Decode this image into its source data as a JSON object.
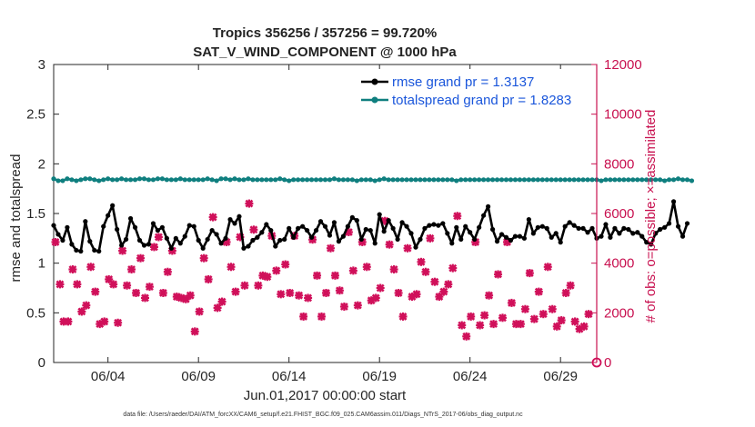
{
  "chart_data": {
    "type": "line",
    "title": "Tropics 356256 / 357256 = 99.720%",
    "subtitle": "SAT_V_WIND_COMPONENT @ 1000 hPa",
    "xlabel": "Jun.01,2017 00:00:00 start",
    "ylabel": "rmse and totalspread",
    "y2label": "# of obs: o=possible; ×=assimilated",
    "footnote": "data file: /Users/raeder/DAI/ATM_forcXX/CAM6_setup/f.e21.FHIST_BGC.f09_025.CAM6assim.011/Diags_NTrS_2017-06/obs_diag_output.nc",
    "xlim": [
      1,
      31
    ],
    "ylim": [
      0,
      3
    ],
    "y2lim": [
      0,
      12000
    ],
    "x_ticks": [
      4,
      9,
      14,
      19,
      24,
      29
    ],
    "x_tick_labels": [
      "06/04",
      "06/09",
      "06/14",
      "06/19",
      "06/24",
      "06/29"
    ],
    "y_ticks": [
      0,
      0.5,
      1,
      1.5,
      2,
      2.5,
      3
    ],
    "y_tick_labels": [
      "0",
      "0.5",
      "1",
      "1.5",
      "2",
      "2.5",
      "3"
    ],
    "y2_ticks": [
      0,
      2000,
      4000,
      6000,
      8000,
      10000,
      12000
    ],
    "y2_tick_labels": [
      "0",
      "2000",
      "4000",
      "6000",
      "8000",
      "10000",
      "12000"
    ],
    "legend_location": "top-right",
    "series": [
      {
        "name": "rmse grand pr = 1.3137",
        "color": "#000000",
        "axis": "left",
        "x_start": 1.0,
        "x_step": 0.25,
        "values": [
          1.38,
          1.29,
          1.23,
          1.36,
          1.19,
          1.13,
          1.12,
          1.42,
          1.22,
          1.13,
          1.12,
          1.37,
          1.48,
          1.58,
          1.34,
          1.18,
          1.24,
          1.45,
          1.36,
          1.23,
          1.18,
          1.19,
          1.4,
          1.33,
          1.36,
          1.25,
          1.15,
          1.25,
          1.2,
          1.27,
          1.38,
          1.37,
          1.23,
          1.15,
          1.24,
          1.33,
          1.29,
          1.2,
          1.25,
          1.44,
          1.4,
          1.47,
          1.15,
          1.17,
          1.23,
          1.26,
          1.31,
          1.39,
          1.33,
          1.17,
          1.23,
          1.24,
          1.35,
          1.26,
          1.35,
          1.37,
          1.33,
          1.26,
          1.33,
          1.42,
          1.37,
          1.28,
          1.41,
          1.22,
          1.27,
          1.37,
          1.46,
          1.43,
          1.24,
          1.34,
          1.33,
          1.2,
          1.49,
          1.32,
          1.43,
          1.35,
          1.24,
          1.41,
          1.37,
          1.3,
          1.16,
          1.24,
          1.35,
          1.38,
          1.39,
          1.38,
          1.4,
          1.3,
          1.2,
          1.36,
          1.24,
          1.37,
          1.31,
          1.24,
          1.36,
          1.48,
          1.57,
          1.34,
          1.22,
          1.29,
          1.26,
          1.23,
          1.27,
          1.27,
          1.25,
          1.44,
          1.3,
          1.36,
          1.37,
          1.35,
          1.26,
          1.3,
          1.21,
          1.37,
          1.41,
          1.38,
          1.35,
          1.35,
          1.31,
          1.35,
          1.25,
          1.27,
          1.39,
          1.26,
          1.35,
          1.3,
          1.35,
          1.34,
          1.3,
          1.31,
          1.27,
          1.21,
          1.19,
          1.3,
          1.34,
          1.36,
          1.4,
          1.62,
          1.37,
          1.27,
          1.4
        ]
      },
      {
        "name": "totalspread grand pr = 1.8283",
        "color": "#0f7f7f",
        "axis": "left",
        "x_start": 1.0,
        "x_step": 0.25,
        "values": [
          1.85,
          1.83,
          1.83,
          1.85,
          1.84,
          1.83,
          1.84,
          1.85,
          1.85,
          1.84,
          1.83,
          1.84,
          1.85,
          1.84,
          1.84,
          1.85,
          1.84,
          1.84,
          1.84,
          1.85,
          1.85,
          1.84,
          1.84,
          1.85,
          1.85,
          1.84,
          1.84,
          1.84,
          1.85,
          1.84,
          1.84,
          1.84,
          1.84,
          1.84,
          1.85,
          1.84,
          1.83,
          1.85,
          1.85,
          1.84,
          1.85,
          1.84,
          1.84,
          1.85,
          1.84,
          1.84,
          1.84,
          1.84,
          1.84,
          1.84,
          1.85,
          1.84,
          1.83,
          1.84,
          1.84,
          1.84,
          1.84,
          1.84,
          1.84,
          1.84,
          1.84,
          1.84,
          1.85,
          1.84,
          1.84,
          1.84,
          1.84,
          1.83,
          1.84,
          1.84,
          1.84,
          1.83,
          1.84,
          1.85,
          1.84,
          1.84,
          1.84,
          1.84,
          1.84,
          1.84,
          1.84,
          1.84,
          1.84,
          1.84,
          1.84,
          1.84,
          1.84,
          1.84,
          1.84,
          1.83,
          1.84,
          1.84,
          1.84,
          1.84,
          1.84,
          1.84,
          1.84,
          1.84,
          1.84,
          1.84,
          1.84,
          1.84,
          1.84,
          1.84,
          1.84,
          1.84,
          1.84,
          1.84,
          1.84,
          1.84,
          1.84,
          1.84,
          1.84,
          1.84,
          1.84,
          1.84,
          1.84,
          1.84,
          1.84,
          1.84,
          1.84,
          1.83,
          1.84,
          1.84,
          1.84,
          1.84,
          1.84,
          1.84,
          1.84,
          1.84,
          1.84,
          1.84,
          1.84,
          1.84,
          1.84,
          1.83,
          1.84,
          1.84,
          1.85,
          1.84,
          1.84,
          1.83
        ]
      }
    ],
    "obs_series": {
      "name": "# of obs assimilated",
      "color": "#d0105a",
      "axis": "right",
      "marker": "x",
      "points": [
        {
          "x": 1.1,
          "y": 4850
        },
        {
          "x": 1.35,
          "y": 3150
        },
        {
          "x": 1.55,
          "y": 1650
        },
        {
          "x": 1.8,
          "y": 1650
        },
        {
          "x": 2.05,
          "y": 3750
        },
        {
          "x": 2.3,
          "y": 3150
        },
        {
          "x": 2.55,
          "y": 2050
        },
        {
          "x": 2.8,
          "y": 2300
        },
        {
          "x": 3.05,
          "y": 3850
        },
        {
          "x": 3.3,
          "y": 2850
        },
        {
          "x": 3.55,
          "y": 1550
        },
        {
          "x": 3.8,
          "y": 1650
        },
        {
          "x": 4.05,
          "y": 3350
        },
        {
          "x": 4.3,
          "y": 3150
        },
        {
          "x": 4.55,
          "y": 1600
        },
        {
          "x": 4.8,
          "y": 4500
        },
        {
          "x": 5.05,
          "y": 3100
        },
        {
          "x": 5.3,
          "y": 3750
        },
        {
          "x": 5.55,
          "y": 2800
        },
        {
          "x": 5.8,
          "y": 4200
        },
        {
          "x": 6.05,
          "y": 2600
        },
        {
          "x": 6.3,
          "y": 3050
        },
        {
          "x": 6.55,
          "y": 4650
        },
        {
          "x": 6.8,
          "y": 5050
        },
        {
          "x": 7.05,
          "y": 2800
        },
        {
          "x": 7.3,
          "y": 3650
        },
        {
          "x": 7.55,
          "y": 4500
        },
        {
          "x": 7.8,
          "y": 2650
        },
        {
          "x": 8.05,
          "y": 2600
        },
        {
          "x": 8.3,
          "y": 2550
        },
        {
          "x": 8.55,
          "y": 2700
        },
        {
          "x": 8.8,
          "y": 1250
        },
        {
          "x": 9.05,
          "y": 2050
        },
        {
          "x": 9.3,
          "y": 4200
        },
        {
          "x": 9.55,
          "y": 3350
        },
        {
          "x": 9.8,
          "y": 5850
        },
        {
          "x": 10.05,
          "y": 2200
        },
        {
          "x": 10.3,
          "y": 2450
        },
        {
          "x": 10.55,
          "y": 4850
        },
        {
          "x": 10.8,
          "y": 3850
        },
        {
          "x": 11.05,
          "y": 2850
        },
        {
          "x": 11.3,
          "y": 5050
        },
        {
          "x": 11.55,
          "y": 3100
        },
        {
          "x": 11.8,
          "y": 6400
        },
        {
          "x": 12.05,
          "y": 5350
        },
        {
          "x": 12.3,
          "y": 3100
        },
        {
          "x": 12.55,
          "y": 3500
        },
        {
          "x": 12.8,
          "y": 3450
        },
        {
          "x": 13.05,
          "y": 5100
        },
        {
          "x": 13.3,
          "y": 3700
        },
        {
          "x": 13.55,
          "y": 2750
        },
        {
          "x": 13.8,
          "y": 3950
        },
        {
          "x": 14.05,
          "y": 2800
        },
        {
          "x": 14.3,
          "y": 5100
        },
        {
          "x": 14.55,
          "y": 2700
        },
        {
          "x": 14.8,
          "y": 1850
        },
        {
          "x": 15.05,
          "y": 2600
        },
        {
          "x": 15.3,
          "y": 4950
        },
        {
          "x": 15.55,
          "y": 3500
        },
        {
          "x": 15.8,
          "y": 1850
        },
        {
          "x": 16.05,
          "y": 2800
        },
        {
          "x": 16.3,
          "y": 4600
        },
        {
          "x": 16.55,
          "y": 3500
        },
        {
          "x": 16.8,
          "y": 2900
        },
        {
          "x": 17.05,
          "y": 2250
        },
        {
          "x": 17.3,
          "y": 5250
        },
        {
          "x": 17.55,
          "y": 3700
        },
        {
          "x": 17.8,
          "y": 2300
        },
        {
          "x": 18.05,
          "y": 4850
        },
        {
          "x": 18.3,
          "y": 3850
        },
        {
          "x": 18.55,
          "y": 2500
        },
        {
          "x": 18.8,
          "y": 2600
        },
        {
          "x": 19.05,
          "y": 3000
        },
        {
          "x": 19.3,
          "y": 5700
        },
        {
          "x": 19.55,
          "y": 4750
        },
        {
          "x": 19.8,
          "y": 3750
        },
        {
          "x": 20.05,
          "y": 2800
        },
        {
          "x": 20.3,
          "y": 1850
        },
        {
          "x": 20.55,
          "y": 4600
        },
        {
          "x": 20.8,
          "y": 2650
        },
        {
          "x": 21.05,
          "y": 2750
        },
        {
          "x": 21.3,
          "y": 4050
        },
        {
          "x": 21.55,
          "y": 3650
        },
        {
          "x": 21.8,
          "y": 5000
        },
        {
          "x": 22.05,
          "y": 3250
        },
        {
          "x": 22.3,
          "y": 2650
        },
        {
          "x": 22.55,
          "y": 2850
        },
        {
          "x": 22.8,
          "y": 3150
        },
        {
          "x": 23.05,
          "y": 3800
        },
        {
          "x": 23.3,
          "y": 5900
        },
        {
          "x": 23.55,
          "y": 1500
        },
        {
          "x": 23.8,
          "y": 1050
        },
        {
          "x": 24.05,
          "y": 1850
        },
        {
          "x": 24.3,
          "y": 4850
        },
        {
          "x": 24.55,
          "y": 1500
        },
        {
          "x": 24.8,
          "y": 1900
        },
        {
          "x": 25.05,
          "y": 2700
        },
        {
          "x": 25.3,
          "y": 1550
        },
        {
          "x": 25.55,
          "y": 3550
        },
        {
          "x": 25.8,
          "y": 1800
        },
        {
          "x": 26.05,
          "y": 4850
        },
        {
          "x": 26.3,
          "y": 2400
        },
        {
          "x": 26.55,
          "y": 1550
        },
        {
          "x": 26.8,
          "y": 1550
        },
        {
          "x": 27.05,
          "y": 2150
        },
        {
          "x": 27.3,
          "y": 3600
        },
        {
          "x": 27.55,
          "y": 1750
        },
        {
          "x": 27.8,
          "y": 2850
        },
        {
          "x": 28.05,
          "y": 1950
        },
        {
          "x": 28.3,
          "y": 3850
        },
        {
          "x": 28.55,
          "y": 2150
        },
        {
          "x": 28.8,
          "y": 1450
        },
        {
          "x": 29.05,
          "y": 1700
        },
        {
          "x": 29.3,
          "y": 2800
        },
        {
          "x": 29.55,
          "y": 3100
        },
        {
          "x": 29.8,
          "y": 1650
        },
        {
          "x": 30.05,
          "y": 1350
        },
        {
          "x": 30.3,
          "y": 1450
        },
        {
          "x": 30.55,
          "y": 1950
        }
      ]
    },
    "obs_possible_zero": {
      "x": 31.0,
      "y": 0,
      "marker": "o"
    }
  }
}
